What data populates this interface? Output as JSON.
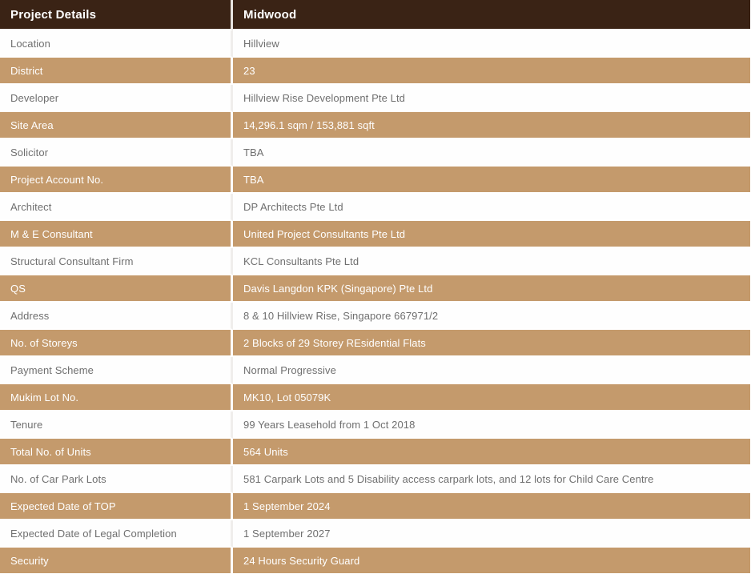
{
  "table": {
    "header": {
      "col1": "Project Details",
      "col2": "Midwood"
    },
    "rows": [
      {
        "label": "Location",
        "value": "Hillview"
      },
      {
        "label": "District",
        "value": "23"
      },
      {
        "label": "Developer",
        "value": "Hillview Rise Development Pte Ltd"
      },
      {
        "label": "Site Area",
        "value": "14,296.1 sqm / 153,881 sqft"
      },
      {
        "label": "Solicitor",
        "value": "TBA"
      },
      {
        "label": "Project Account No.",
        "value": "TBA"
      },
      {
        "label": "Architect",
        "value": "DP Architects Pte Ltd"
      },
      {
        "label": "M & E Consultant",
        "value": "United Project Consultants Pte Ltd"
      },
      {
        "label": "Structural Consultant Firm",
        "value": "KCL Consultants Pte Ltd"
      },
      {
        "label": "QS",
        "value": "Davis Langdon KPK (Singapore) Pte Ltd"
      },
      {
        "label": "Address",
        "value": "8 & 10 Hillview Rise, Singapore 667971/2"
      },
      {
        "label": "No. of Storeys",
        "value": "2 Blocks of 29 Storey REsidential Flats"
      },
      {
        "label": "Payment Scheme",
        "value": "Normal Progressive"
      },
      {
        "label": "Mukim Lot No.",
        "value": "MK10, Lot 05079K"
      },
      {
        "label": "Tenure",
        "value": "99 Years Leasehold from 1 Oct 2018"
      },
      {
        "label": "Total No. of Units",
        "value": "564 Units"
      },
      {
        "label": "No. of Car Park Lots",
        "value": "581 Carpark Lots and 5 Disability access carpark lots, and 12 lots for Child Care Centre"
      },
      {
        "label": "Expected Date of TOP",
        "value": "1 September 2024"
      },
      {
        "label": "Expected Date of Legal Completion",
        "value": "1 September 2027"
      },
      {
        "label": "Security",
        "value": "24 Hours Security Guard"
      }
    ],
    "colors": {
      "header_bg": "#3a2315",
      "stripe_bg": "#c49a6c",
      "white_row_text": "#6f6f6f",
      "stripe_text": "#ffffff",
      "bottom_border": "#7a5636"
    }
  }
}
